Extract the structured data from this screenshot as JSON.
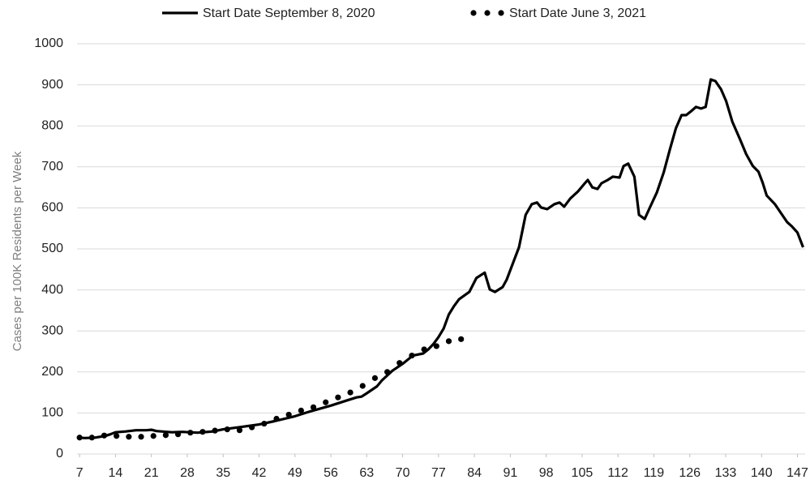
{
  "chart_data": {
    "type": "line",
    "y_label": "Cases per 100K Residents per Week",
    "xlim": [
      6.5,
      148.5
    ],
    "xticks": [
      7,
      14,
      21,
      28,
      35,
      42,
      49,
      56,
      63,
      70,
      77,
      84,
      91,
      98,
      105,
      112,
      119,
      126,
      133,
      140,
      147
    ],
    "ylim": [
      0,
      1000
    ],
    "yticks": [
      0,
      100,
      200,
      300,
      400,
      500,
      600,
      700,
      800,
      900,
      1000
    ],
    "grid": true,
    "legend": "top",
    "series": [
      {
        "name": "Start Date September 8, 2020",
        "color": "#000000",
        "style": "solid",
        "x": [
          7,
          8,
          10,
          12,
          13,
          14,
          16,
          18,
          20,
          21,
          22,
          25,
          27,
          30,
          33,
          35,
          38,
          42,
          45,
          49,
          52,
          56,
          59,
          61,
          62,
          63,
          65,
          66,
          68,
          70,
          72,
          74,
          75,
          76,
          77,
          78,
          79,
          80,
          81,
          83,
          84.4,
          86,
          87,
          88,
          89.5,
          90.3,
          92.7,
          94,
          95.2,
          96.2,
          97,
          98.2,
          99.6,
          100.6,
          101.5,
          102.7,
          104.2,
          105.4,
          106.1,
          107,
          108,
          108.8,
          110,
          111,
          112.3,
          113.1,
          114,
          115.2,
          116.1,
          117.2,
          118.3,
          119.6,
          120.9,
          122.1,
          123.3,
          124.4,
          125.3,
          126.3,
          127.2,
          128.2,
          129.1,
          130.1,
          131,
          132.1,
          133.1,
          134.3,
          135.8,
          137,
          138.3,
          139.4,
          140.2,
          141,
          142.6,
          143.8,
          145,
          145.9,
          147,
          148.1
        ],
        "values": [
          40,
          39,
          40,
          44,
          48,
          53,
          55,
          58,
          58,
          59,
          56,
          53,
          54,
          52,
          55,
          60,
          65,
          72,
          80,
          92,
          104,
          118,
          130,
          138,
          140,
          148,
          165,
          180,
          203,
          220,
          240,
          245,
          255,
          268,
          285,
          306,
          340,
          360,
          377,
          395,
          429,
          442,
          401,
          395,
          407,
          425,
          504,
          583,
          609,
          613,
          601,
          597,
          609,
          613,
          603,
          623,
          640,
          658,
          668,
          650,
          646,
          660,
          668,
          676,
          674,
          702,
          708,
          676,
          583,
          573,
          603,
          638,
          686,
          741,
          794,
          826,
          826,
          836,
          846,
          842,
          846,
          913,
          909,
          889,
          860,
          810,
          767,
          731,
          702,
          688,
          662,
          630,
          609,
          587,
          565,
          555,
          540,
          504
        ]
      },
      {
        "name": "Start Date June 3, 2021",
        "color": "#000000",
        "style": "dotted",
        "x": [
          7,
          9.4,
          11.8,
          14.2,
          16.6,
          19,
          21.4,
          23.8,
          26.2,
          28.6,
          31,
          33.4,
          35.8,
          38.2,
          40.6,
          43,
          45.4,
          47.8,
          50.2,
          52.6,
          55,
          57.4,
          59.8,
          62.2,
          64.6,
          67,
          69.4,
          71.8,
          74.2,
          76.6,
          79,
          81.4
        ],
        "values": [
          40,
          40,
          45,
          44,
          42,
          42,
          44,
          46,
          48,
          52,
          54,
          57,
          60,
          58,
          65,
          74,
          86,
          96,
          106,
          114,
          126,
          138,
          150,
          166,
          185,
          200,
          222,
          240,
          255,
          263,
          275,
          280
        ]
      }
    ]
  }
}
